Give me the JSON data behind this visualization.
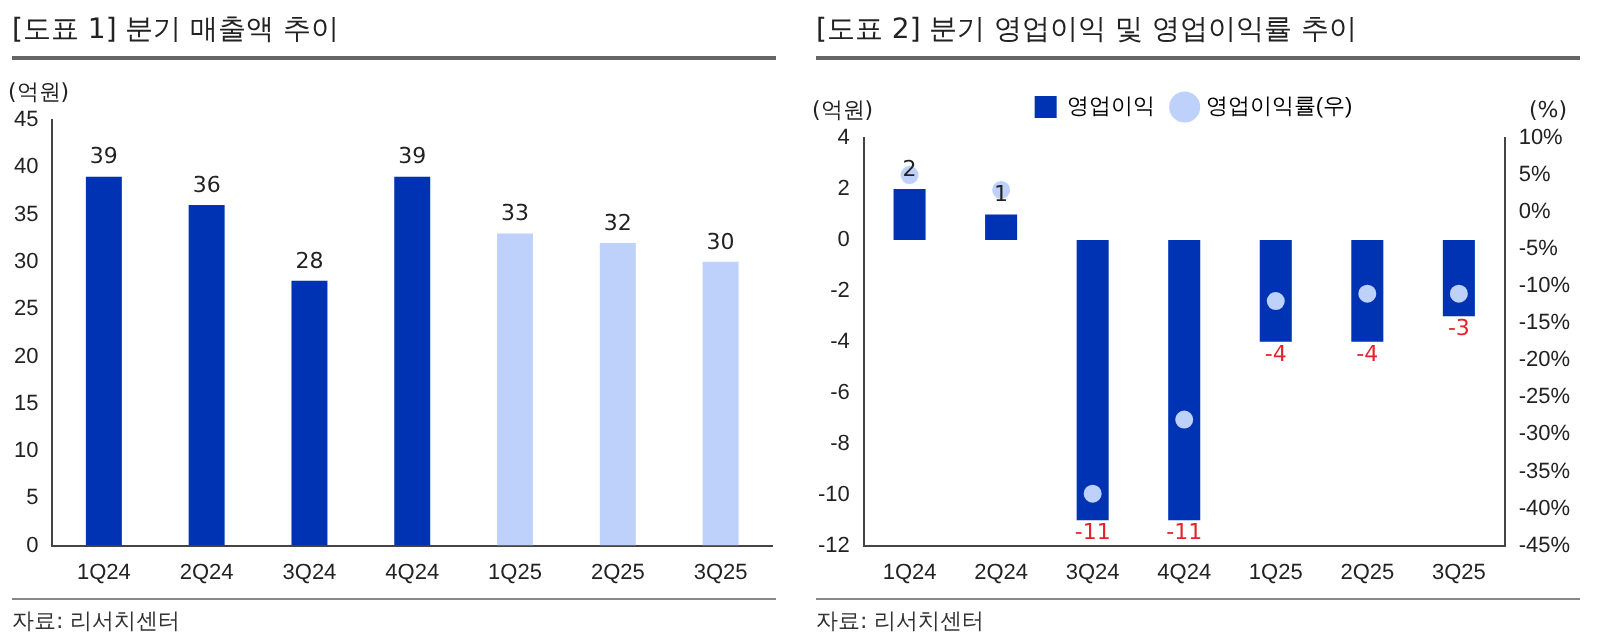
{
  "chart_data": [
    {
      "type": "bar",
      "title": "[도표 1] 분기 매출액 추이",
      "ylabel": "(억원)",
      "categories": [
        "1Q24",
        "2Q24",
        "3Q24",
        "4Q24",
        "1Q25",
        "2Q25",
        "3Q25"
      ],
      "values": [
        39,
        36,
        28,
        39,
        33,
        32,
        30
      ],
      "colors": [
        "#0033b4",
        "#0033b4",
        "#0033b4",
        "#0033b4",
        "#bdd1fb",
        "#bdd1fb",
        "#bdd1fb"
      ],
      "ylim": [
        0,
        45
      ],
      "yticks": [
        0,
        5,
        10,
        15,
        20,
        25,
        30,
        35,
        40,
        45
      ],
      "data_labels": true,
      "grid": false,
      "legend": false,
      "annotations": [
        "자료: 리서치센터"
      ]
    },
    {
      "type": "bar",
      "title": "[도표 2] 분기 영업이익 및 영업이익률 추이",
      "ylabel": "(억원)",
      "y2label": "(%)",
      "categories": [
        "1Q24",
        "2Q24",
        "3Q24",
        "4Q24",
        "1Q25",
        "2Q25",
        "3Q25"
      ],
      "series": [
        {
          "name": "영업이익",
          "type": "bar",
          "color": "#0033b4",
          "values": [
            2,
            1,
            -11,
            -11,
            -4,
            -4,
            -3
          ],
          "value_labels": [
            "2",
            "1",
            "-11",
            "-11",
            "-4",
            "-4",
            "-3"
          ]
        },
        {
          "name": "영업이익률(우)",
          "type": "scatter",
          "axis": "y2",
          "color": "#bdd1fb",
          "x": [
            "1Q24",
            "2Q24",
            "3Q24",
            "4Q24",
            "1Q25",
            "2Q25",
            "3Q25"
          ],
          "values": [
            5,
            3,
            -38,
            -28,
            -12,
            -11,
            -11
          ]
        }
      ],
      "ylim": [
        -12,
        4
      ],
      "yticks": [
        -12,
        -10,
        -8,
        -6,
        -4,
        -2,
        0,
        2,
        4
      ],
      "y2lim": [
        -45,
        10
      ],
      "y2ticks": [
        {
          "value": -45,
          "label": "-45%"
        },
        {
          "value": -40,
          "label": "-40%"
        },
        {
          "value": -35,
          "label": "-35%"
        },
        {
          "value": -30,
          "label": "-30%"
        },
        {
          "value": -25,
          "label": "-25%"
        },
        {
          "value": -20,
          "label": "-20%"
        },
        {
          "value": -15,
          "label": "-15%"
        },
        {
          "value": -10,
          "label": "-10%"
        },
        {
          "value": -5,
          "label": "-5%"
        },
        {
          "value": 0,
          "label": "0%"
        },
        {
          "value": 5,
          "label": "5%"
        },
        {
          "value": 10,
          "label": "10%"
        }
      ],
      "grid": false,
      "legend": "top",
      "marker": "circle",
      "annotations": [
        "자료: 리서치센터"
      ]
    }
  ]
}
